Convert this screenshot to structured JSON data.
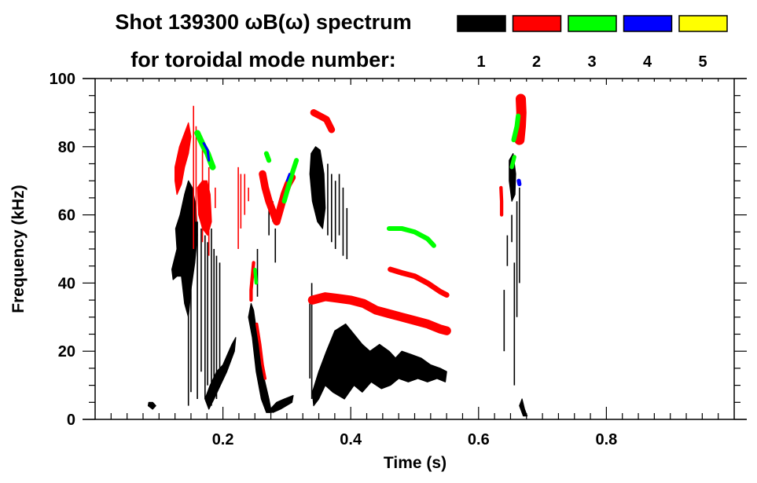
{
  "chart_data": {
    "type": "heatmap",
    "title_line1": "Shot 139300 ωB(ω) spectrum",
    "title_line2": "for toroidal mode number:",
    "xlabel": "Time (s)",
    "ylabel": "Frequency (kHz)",
    "xlim": [
      0.0,
      1.0
    ],
    "ylim": [
      0,
      100
    ],
    "x_ticks": [
      0.2,
      0.4,
      0.6,
      0.8
    ],
    "x_tick_labels": [
      "0.2",
      "0.4",
      "0.6",
      "0.8"
    ],
    "x_minor_step": 0.025,
    "y_ticks": [
      0,
      20,
      40,
      60,
      80,
      100
    ],
    "y_tick_labels": [
      "0",
      "20",
      "40",
      "60",
      "80",
      "100"
    ],
    "y_minor_step": 5,
    "grid": false,
    "legend": {
      "placement": "top-right",
      "entries": [
        {
          "label": "1",
          "color": "#000000"
        },
        {
          "label": "2",
          "color": "#ff0000"
        },
        {
          "label": "3",
          "color": "#00ff00"
        },
        {
          "label": "4",
          "color": "#0000ff"
        },
        {
          "label": "5",
          "color": "#ffff00"
        }
      ]
    },
    "features": [
      {
        "mode": 1,
        "kind": "blob",
        "points": [
          [
            0.12,
            44
          ],
          [
            0.128,
            50
          ],
          [
            0.126,
            56
          ],
          [
            0.133,
            60
          ],
          [
            0.14,
            66
          ],
          [
            0.146,
            70
          ],
          [
            0.152,
            68
          ],
          [
            0.158,
            62
          ],
          [
            0.16,
            54
          ],
          [
            0.156,
            46
          ],
          [
            0.15,
            38
          ],
          [
            0.146,
            30
          ],
          [
            0.14,
            34
          ],
          [
            0.135,
            42
          ],
          [
            0.128,
            42
          ],
          [
            0.122,
            41
          ]
        ]
      },
      {
        "mode": 1,
        "kind": "streaks",
        "x": [
          0.146,
          0.15,
          0.16,
          0.166,
          0.172,
          0.176,
          0.182,
          0.186,
          0.19,
          0.195
        ],
        "y0": [
          4,
          8,
          6,
          14,
          6,
          10,
          4,
          10,
          6,
          12
        ],
        "y1": [
          64,
          60,
          58,
          56,
          54,
          52,
          56,
          50,
          48,
          46
        ]
      },
      {
        "mode": 1,
        "kind": "blob",
        "points": [
          [
            0.172,
            6
          ],
          [
            0.18,
            10
          ],
          [
            0.19,
            14
          ],
          [
            0.2,
            16
          ],
          [
            0.214,
            22
          ],
          [
            0.22,
            24
          ],
          [
            0.218,
            20
          ],
          [
            0.206,
            14
          ],
          [
            0.196,
            10
          ],
          [
            0.186,
            6
          ],
          [
            0.178,
            3
          ]
        ]
      },
      {
        "mode": 1,
        "kind": "blob",
        "points": [
          [
            0.083,
            4
          ],
          [
            0.09,
            3
          ],
          [
            0.095,
            4
          ],
          [
            0.09,
            5
          ],
          [
            0.084,
            5
          ]
        ]
      },
      {
        "mode": 1,
        "kind": "blob",
        "points": [
          [
            0.24,
            30
          ],
          [
            0.246,
            24
          ],
          [
            0.252,
            14
          ],
          [
            0.26,
            6
          ],
          [
            0.268,
            2
          ],
          [
            0.276,
            2
          ],
          [
            0.272,
            6
          ],
          [
            0.262,
            14
          ],
          [
            0.254,
            24
          ],
          [
            0.248,
            32
          ],
          [
            0.244,
            34
          ]
        ]
      },
      {
        "mode": 1,
        "kind": "blob",
        "points": [
          [
            0.274,
            3
          ],
          [
            0.284,
            5
          ],
          [
            0.296,
            6
          ],
          [
            0.31,
            7
          ],
          [
            0.308,
            5
          ],
          [
            0.29,
            3
          ],
          [
            0.278,
            2
          ]
        ]
      },
      {
        "mode": 1,
        "kind": "streaks",
        "x": [
          0.254,
          0.272,
          0.278,
          0.282
        ],
        "y0": [
          36,
          54,
          58,
          46
        ],
        "y1": [
          50,
          62,
          64,
          56
        ]
      },
      {
        "mode": 1,
        "kind": "blob",
        "points": [
          [
            0.338,
            78
          ],
          [
            0.345,
            80
          ],
          [
            0.352,
            79
          ],
          [
            0.358,
            72
          ],
          [
            0.36,
            62
          ],
          [
            0.356,
            56
          ],
          [
            0.348,
            58
          ],
          [
            0.34,
            64
          ],
          [
            0.336,
            72
          ]
        ]
      },
      {
        "mode": 1,
        "kind": "streaks",
        "x": [
          0.364,
          0.37,
          0.376,
          0.382,
          0.388,
          0.394
        ],
        "y0": [
          54,
          52,
          50,
          54,
          48,
          47
        ],
        "y1": [
          75,
          72,
          70,
          72,
          68,
          62
        ]
      },
      {
        "mode": 1,
        "kind": "blob",
        "points": [
          [
            0.34,
            8
          ],
          [
            0.35,
            14
          ],
          [
            0.362,
            20
          ],
          [
            0.375,
            26
          ],
          [
            0.392,
            28
          ],
          [
            0.405,
            25
          ],
          [
            0.418,
            22
          ],
          [
            0.43,
            20
          ],
          [
            0.445,
            22
          ],
          [
            0.46,
            20
          ],
          [
            0.47,
            18
          ],
          [
            0.48,
            20
          ],
          [
            0.495,
            19
          ],
          [
            0.51,
            18
          ],
          [
            0.525,
            16
          ],
          [
            0.54,
            15
          ],
          [
            0.55,
            14
          ],
          [
            0.548,
            11
          ],
          [
            0.535,
            12
          ],
          [
            0.52,
            11
          ],
          [
            0.505,
            12
          ],
          [
            0.49,
            11
          ],
          [
            0.475,
            12
          ],
          [
            0.462,
            10
          ],
          [
            0.448,
            9
          ],
          [
            0.432,
            11
          ],
          [
            0.418,
            8
          ],
          [
            0.405,
            10
          ],
          [
            0.39,
            6
          ],
          [
            0.372,
            8
          ],
          [
            0.36,
            10
          ],
          [
            0.35,
            6
          ],
          [
            0.342,
            4
          ]
        ]
      },
      {
        "mode": 1,
        "kind": "streaks",
        "x": [
          0.336,
          0.339
        ],
        "y0": [
          12,
          6
        ],
        "y1": [
          34,
          40
        ]
      },
      {
        "mode": 1,
        "kind": "streaks",
        "x": [
          0.64,
          0.645,
          0.652,
          0.656,
          0.66,
          0.664
        ],
        "y0": [
          20,
          45,
          52,
          10,
          30,
          40
        ],
        "y1": [
          38,
          54,
          60,
          46,
          64,
          68
        ]
      },
      {
        "mode": 1,
        "kind": "blob",
        "points": [
          [
            0.648,
            76
          ],
          [
            0.654,
            78
          ],
          [
            0.658,
            72
          ],
          [
            0.657,
            66
          ],
          [
            0.652,
            64
          ],
          [
            0.648,
            70
          ]
        ]
      },
      {
        "mode": 1,
        "kind": "blob",
        "points": [
          [
            0.664,
            4
          ],
          [
            0.668,
            6
          ],
          [
            0.672,
            3
          ],
          [
            0.676,
            1
          ],
          [
            0.67,
            1
          ]
        ]
      },
      {
        "mode": 2,
        "kind": "blob",
        "points": [
          [
            0.125,
            74
          ],
          [
            0.132,
            80
          ],
          [
            0.14,
            84
          ],
          [
            0.146,
            87
          ],
          [
            0.15,
            83
          ],
          [
            0.146,
            78
          ],
          [
            0.14,
            74
          ],
          [
            0.135,
            69
          ],
          [
            0.128,
            66
          ],
          [
            0.125,
            70
          ]
        ]
      },
      {
        "mode": 2,
        "kind": "blob",
        "points": [
          [
            0.16,
            68
          ],
          [
            0.168,
            70
          ],
          [
            0.175,
            70
          ],
          [
            0.18,
            66
          ],
          [
            0.182,
            58
          ],
          [
            0.176,
            54
          ],
          [
            0.168,
            56
          ],
          [
            0.162,
            60
          ]
        ]
      },
      {
        "mode": 2,
        "kind": "streaks",
        "x": [
          0.154,
          0.158,
          0.168,
          0.178,
          0.188
        ],
        "y0": [
          50,
          58,
          52,
          48,
          62
        ],
        "y1": [
          92,
          86,
          80,
          74,
          68
        ]
      },
      {
        "mode": 2,
        "kind": "streaks",
        "x": [
          0.224,
          0.228,
          0.234,
          0.24
        ],
        "y0": [
          50,
          56,
          60,
          64
        ],
        "y1": [
          74,
          72,
          72,
          68
        ]
      },
      {
        "mode": 2,
        "kind": "band",
        "points": [
          [
            0.262,
            72
          ],
          [
            0.266,
            68
          ],
          [
            0.272,
            64
          ],
          [
            0.278,
            61
          ],
          [
            0.284,
            58
          ],
          [
            0.29,
            62
          ],
          [
            0.296,
            66
          ],
          [
            0.302,
            69
          ],
          [
            0.308,
            71
          ]
        ],
        "thickness": 2.2
      },
      {
        "mode": 2,
        "kind": "band",
        "points": [
          [
            0.248,
            46
          ],
          [
            0.246,
            42
          ],
          [
            0.244,
            38
          ],
          [
            0.244,
            35
          ]
        ],
        "thickness": 1.0
      },
      {
        "mode": 2,
        "kind": "band",
        "points": [
          [
            0.253,
            28
          ],
          [
            0.258,
            22
          ],
          [
            0.262,
            16
          ],
          [
            0.266,
            12
          ]
        ],
        "thickness": 0.8
      },
      {
        "mode": 2,
        "kind": "band",
        "points": [
          [
            0.342,
            90
          ],
          [
            0.352,
            89
          ],
          [
            0.362,
            88
          ],
          [
            0.37,
            85
          ]
        ],
        "thickness": 2.0
      },
      {
        "mode": 2,
        "kind": "band",
        "points": [
          [
            0.34,
            35
          ],
          [
            0.36,
            36
          ],
          [
            0.38,
            35.5
          ],
          [
            0.4,
            35
          ],
          [
            0.42,
            34
          ],
          [
            0.44,
            32
          ],
          [
            0.46,
            31
          ],
          [
            0.48,
            30
          ],
          [
            0.5,
            29
          ],
          [
            0.52,
            28
          ],
          [
            0.54,
            26.5
          ],
          [
            0.55,
            26
          ]
        ],
        "thickness": 2.6
      },
      {
        "mode": 2,
        "kind": "band",
        "points": [
          [
            0.462,
            44
          ],
          [
            0.48,
            43
          ],
          [
            0.5,
            42
          ],
          [
            0.52,
            40
          ],
          [
            0.54,
            37.5
          ],
          [
            0.55,
            36.5
          ]
        ],
        "thickness": 1.6
      },
      {
        "mode": 2,
        "kind": "band",
        "points": [
          [
            0.664,
            82
          ],
          [
            0.666,
            86
          ],
          [
            0.667,
            90
          ],
          [
            0.666,
            94
          ]
        ],
        "thickness": 3.0
      },
      {
        "mode": 2,
        "kind": "band",
        "points": [
          [
            0.635,
            68
          ],
          [
            0.636,
            64
          ],
          [
            0.636,
            60
          ]
        ],
        "thickness": 1.0
      },
      {
        "mode": 3,
        "kind": "band",
        "points": [
          [
            0.16,
            84
          ],
          [
            0.165,
            82
          ],
          [
            0.17,
            80
          ],
          [
            0.176,
            78
          ],
          [
            0.18,
            76
          ],
          [
            0.184,
            74
          ]
        ],
        "thickness": 1.8
      },
      {
        "mode": 3,
        "kind": "band",
        "points": [
          [
            0.296,
            64
          ],
          [
            0.302,
            68
          ],
          [
            0.308,
            72
          ],
          [
            0.315,
            76
          ]
        ],
        "thickness": 1.4
      },
      {
        "mode": 3,
        "kind": "band",
        "points": [
          [
            0.268,
            78
          ],
          [
            0.272,
            76
          ]
        ],
        "thickness": 1.4
      },
      {
        "mode": 3,
        "kind": "band",
        "points": [
          [
            0.25,
            44
          ],
          [
            0.252,
            40
          ]
        ],
        "thickness": 1.0
      },
      {
        "mode": 3,
        "kind": "band",
        "points": [
          [
            0.46,
            56
          ],
          [
            0.48,
            56
          ],
          [
            0.5,
            55
          ],
          [
            0.52,
            53
          ],
          [
            0.53,
            51
          ]
        ],
        "thickness": 1.4
      },
      {
        "mode": 3,
        "kind": "band",
        "points": [
          [
            0.655,
            82
          ],
          [
            0.66,
            86
          ],
          [
            0.662,
            89
          ]
        ],
        "thickness": 1.4
      },
      {
        "mode": 3,
        "kind": "band",
        "points": [
          [
            0.652,
            74
          ],
          [
            0.656,
            77
          ]
        ],
        "thickness": 1.2
      },
      {
        "mode": 4,
        "kind": "band",
        "points": [
          [
            0.17,
            81
          ],
          [
            0.176,
            79
          ],
          [
            0.178,
            76
          ]
        ],
        "thickness": 0.7
      },
      {
        "mode": 4,
        "kind": "band",
        "points": [
          [
            0.3,
            70
          ],
          [
            0.304,
            72
          ]
        ],
        "thickness": 0.6
      },
      {
        "mode": 4,
        "kind": "band",
        "points": [
          [
            0.663,
            70
          ],
          [
            0.664,
            69
          ]
        ],
        "thickness": 1.2
      }
    ]
  }
}
